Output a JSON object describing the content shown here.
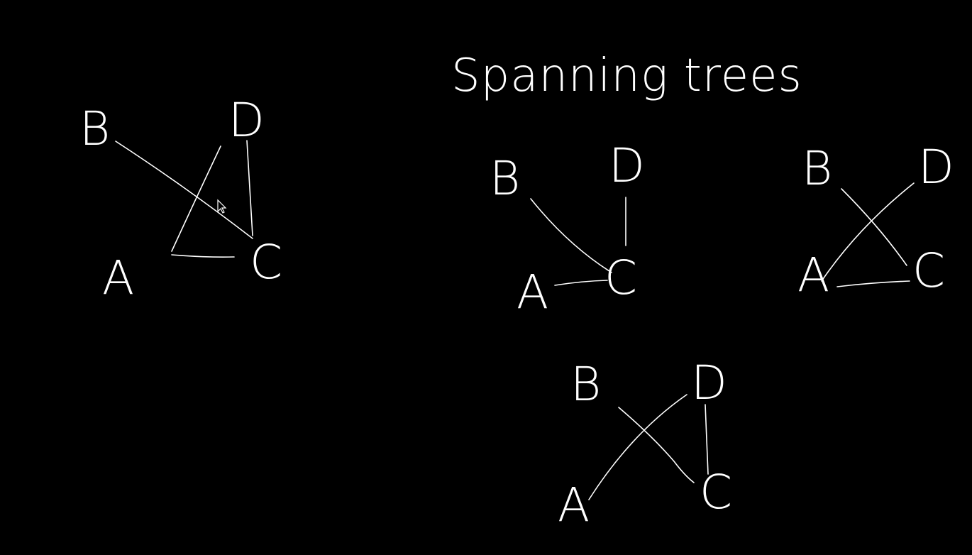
{
  "colors": {
    "background": "#000000",
    "ink": "#ffffff"
  },
  "title": "Spanning trees",
  "nodes": {
    "a": "A",
    "b": "B",
    "c": "C",
    "d": "D"
  },
  "cursor_icon": "pointer-arrow-icon",
  "graphs": [
    {
      "name": "original-graph",
      "edges": [
        [
          "B",
          "C"
        ],
        [
          "D",
          "C"
        ],
        [
          "D",
          "A"
        ],
        [
          "A",
          "C"
        ]
      ]
    },
    {
      "name": "spanning-tree-1",
      "edges": [
        [
          "B",
          "C"
        ],
        [
          "D",
          "C"
        ],
        [
          "A",
          "C"
        ]
      ]
    },
    {
      "name": "spanning-tree-2",
      "edges": [
        [
          "B",
          "C"
        ],
        [
          "D",
          "A"
        ],
        [
          "A",
          "C"
        ]
      ]
    },
    {
      "name": "spanning-tree-3",
      "edges": [
        [
          "B",
          "C"
        ],
        [
          "D",
          "A"
        ],
        [
          "D",
          "C"
        ]
      ]
    }
  ]
}
